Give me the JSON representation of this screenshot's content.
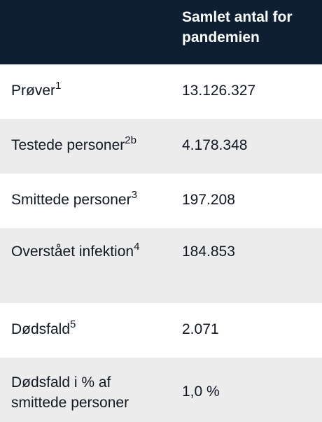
{
  "header": {
    "label_col": "",
    "value_col": "Samlet antal for pandemien"
  },
  "rows": [
    {
      "label": "Prøver",
      "sup": "1",
      "value": "13.126.327"
    },
    {
      "label": "Testede personer",
      "sup": "2b",
      "value": "4.178.348"
    },
    {
      "label": "Smittede personer",
      "sup": "3",
      "value": "197.208"
    },
    {
      "label": "Overstået infektion",
      "sup": "4",
      "value": "184.853"
    },
    {
      "label": "Dødsfald",
      "sup": "5",
      "value": "2.071"
    },
    {
      "label": "Dødsfald i % af smittede personer",
      "sup": "",
      "value": "1,0 %"
    }
  ],
  "colors": {
    "header_bg": "#0e1f33",
    "header_text": "#ffffff",
    "row_alt_bg": "#ececec",
    "row_bg": "#ffffff"
  }
}
